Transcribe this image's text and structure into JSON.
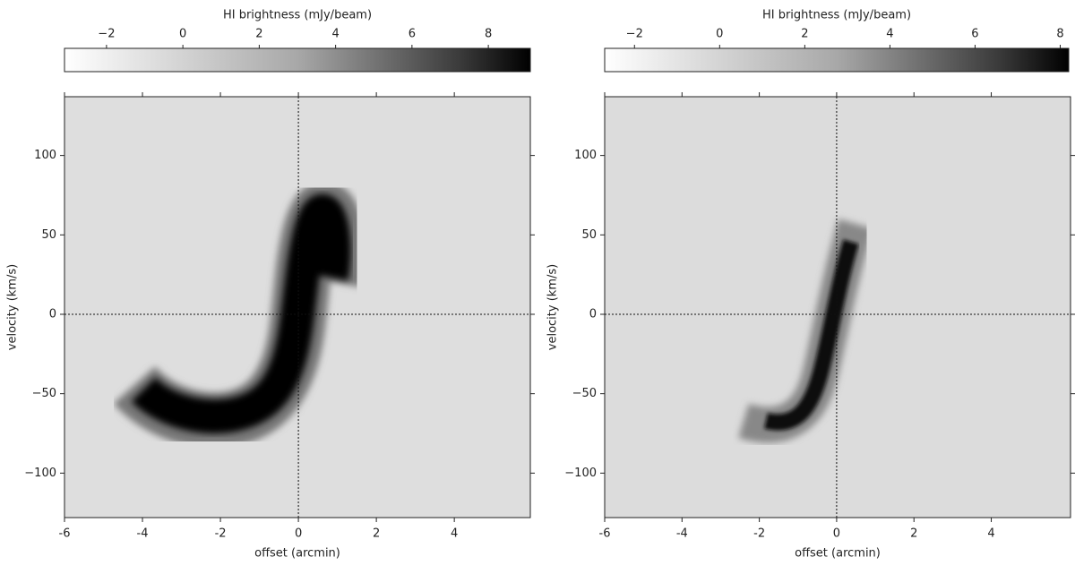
{
  "chart_data": [
    {
      "type": "heatmap",
      "colorbar_label": "HI brightness (mJy/beam)",
      "clim": [
        -3.1,
        9.1
      ],
      "cticks": [
        {
          "value": -2,
          "label": "−2"
        },
        0,
        2,
        4,
        6,
        8
      ],
      "xlabel": "offset (arcmin)",
      "ylabel": "velocity (km/s)",
      "xlim": [
        -6,
        5.95
      ],
      "ylim": [
        -128,
        137
      ],
      "xticks": [
        {
          "value": -6,
          "label": "-6"
        },
        {
          "value": -4,
          "label": "-4"
        },
        {
          "value": -2,
          "label": "-2"
        },
        0,
        2,
        4
      ],
      "yticks": [
        {
          "value": -100,
          "label": "−100"
        },
        {
          "value": -50,
          "label": "−50"
        },
        0,
        50,
        100
      ]
    },
    {
      "type": "heatmap",
      "colorbar_label": "HI brightness (mJy/beam)",
      "clim": [
        -2.7,
        8.2
      ],
      "cticks": [
        {
          "value": -2,
          "label": "−2"
        },
        0,
        2,
        4,
        6,
        8
      ],
      "xlabel": "offset (arcmin)",
      "ylabel": "velocity (km/s)",
      "xlim": [
        -6,
        6.05
      ],
      "ylim": [
        -128,
        137
      ],
      "xticks": [
        {
          "value": -6,
          "label": "-6"
        },
        {
          "value": -4,
          "label": "-4"
        },
        {
          "value": -2,
          "label": "-2"
        },
        0,
        2,
        4
      ],
      "yticks": [
        {
          "value": -100,
          "label": "−100"
        },
        {
          "value": -50,
          "label": "−50"
        },
        0,
        50,
        100
      ]
    }
  ]
}
